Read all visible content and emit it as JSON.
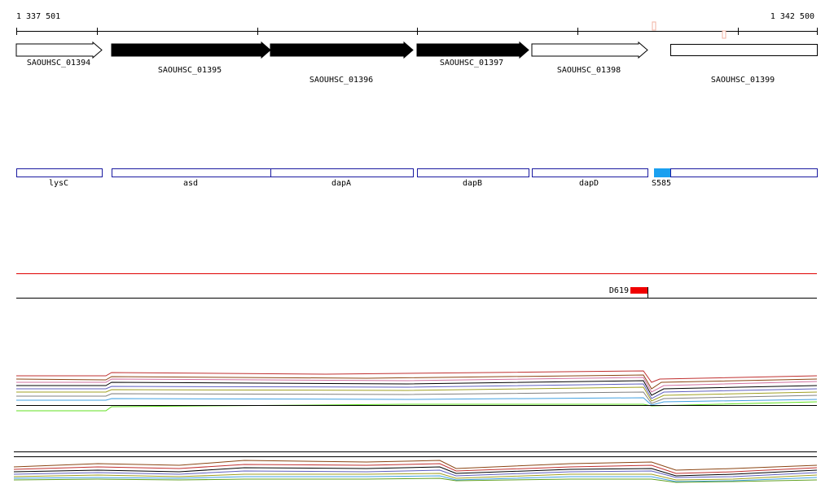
{
  "ruler": {
    "start": "1 337 501",
    "end": "1 342 500"
  },
  "genes": [
    {
      "label": "SAOUHSC_01394"
    },
    {
      "label": "SAOUHSC_01395"
    },
    {
      "label": "SAOUHSC_01396"
    },
    {
      "label": "SAOUHSC_01397"
    },
    {
      "label": "SAOUHSC_01398"
    },
    {
      "label": "SAOUHSC_01399"
    }
  ],
  "features": [
    {
      "label": "lysC"
    },
    {
      "label": "asd"
    },
    {
      "label": "dapA"
    },
    {
      "label": "dapB"
    },
    {
      "label": "dapD"
    },
    {
      "label": "S585"
    }
  ],
  "sites": [
    {
      "label": "D619"
    }
  ]
}
